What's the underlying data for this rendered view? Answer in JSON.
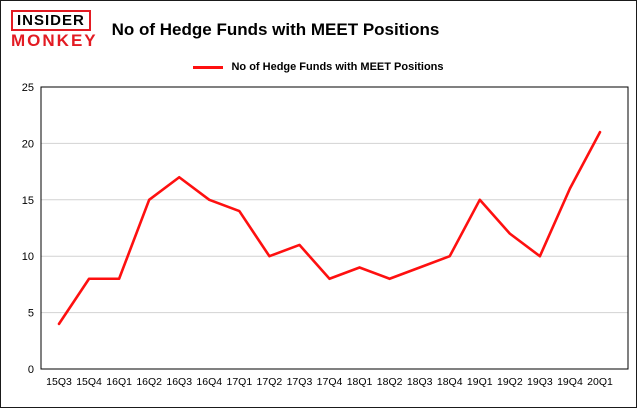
{
  "logo": {
    "line1": "INSIDER",
    "line2": "MONKEY"
  },
  "header": {
    "title": "No of Hedge Funds with MEET Positions"
  },
  "legend": {
    "label": "No of Hedge Funds with MEET Positions"
  },
  "chart_data": {
    "type": "line",
    "title": "No of Hedge Funds with MEET Positions",
    "categories": [
      "15Q3",
      "15Q4",
      "16Q1",
      "16Q2",
      "16Q3",
      "16Q4",
      "17Q1",
      "17Q2",
      "17Q3",
      "17Q4",
      "18Q1",
      "18Q2",
      "18Q3",
      "18Q4",
      "19Q1",
      "19Q2",
      "19Q3",
      "19Q4",
      "20Q1"
    ],
    "series": [
      {
        "name": "No of Hedge Funds with MEET Positions",
        "values": [
          4,
          8,
          8,
          15,
          17,
          15,
          14,
          10,
          11,
          8,
          9,
          8,
          9,
          10,
          15,
          12,
          10,
          16,
          21
        ]
      }
    ],
    "xlabel": "",
    "ylabel": "",
    "ylim": [
      0,
      25
    ],
    "yticks": [
      0,
      5,
      10,
      15,
      20,
      25
    ],
    "grid": true,
    "legend_position": "top",
    "colors": {
      "line": "#fe1010",
      "grid": "#d2d2d2",
      "axis": "#000000",
      "brand": "#e31b23"
    }
  }
}
